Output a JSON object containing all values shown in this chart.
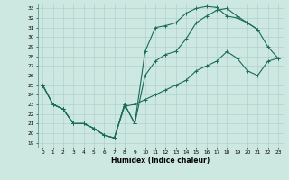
{
  "xlabel": "Humidex (Indice chaleur)",
  "ylabel": "",
  "xlim": [
    -0.5,
    23.5
  ],
  "ylim": [
    18.5,
    33.5
  ],
  "yticks": [
    19,
    20,
    21,
    22,
    23,
    24,
    25,
    26,
    27,
    28,
    29,
    30,
    31,
    32,
    33
  ],
  "xticks": [
    0,
    1,
    2,
    3,
    4,
    5,
    6,
    7,
    8,
    9,
    10,
    11,
    12,
    13,
    14,
    15,
    16,
    17,
    18,
    19,
    20,
    21,
    22,
    23
  ],
  "bg_color": "#cce8e0",
  "line_color": "#1a6b5a",
  "grid_color": "#aacccc",
  "line1_x": [
    0,
    1,
    2,
    3,
    4,
    5,
    6,
    7,
    8,
    9,
    10,
    11,
    12,
    13,
    14,
    15,
    16,
    17,
    18,
    19,
    20,
    21
  ],
  "line1_y": [
    25.0,
    23.0,
    22.5,
    21.0,
    21.0,
    20.5,
    19.8,
    19.5,
    23.0,
    21.0,
    28.5,
    31.0,
    31.2,
    31.5,
    32.5,
    33.0,
    33.2,
    33.1,
    32.2,
    32.0,
    31.5,
    30.8
  ],
  "line2_x": [
    0,
    1,
    2,
    3,
    4,
    5,
    6,
    7,
    8,
    9,
    10,
    11,
    12,
    13,
    14,
    15,
    16,
    17,
    18,
    19,
    20,
    21,
    22,
    23
  ],
  "line2_y": [
    25.0,
    23.0,
    22.5,
    21.0,
    21.0,
    20.5,
    19.8,
    19.5,
    23.0,
    21.0,
    26.0,
    27.5,
    28.2,
    28.5,
    29.8,
    31.5,
    32.2,
    32.8,
    33.0,
    32.2,
    31.5,
    30.8,
    29.0,
    27.8
  ],
  "line3_x": [
    0,
    1,
    2,
    3,
    4,
    5,
    6,
    7,
    8,
    9,
    10,
    11,
    12,
    13,
    14,
    15,
    16,
    17,
    18,
    19,
    20,
    21,
    22,
    23
  ],
  "line3_y": [
    25.0,
    23.0,
    22.5,
    21.0,
    21.0,
    20.5,
    19.8,
    19.5,
    22.8,
    23.0,
    23.5,
    24.0,
    24.5,
    25.0,
    25.5,
    26.5,
    27.0,
    27.5,
    28.5,
    27.8,
    26.5,
    26.0,
    27.5,
    27.8
  ]
}
